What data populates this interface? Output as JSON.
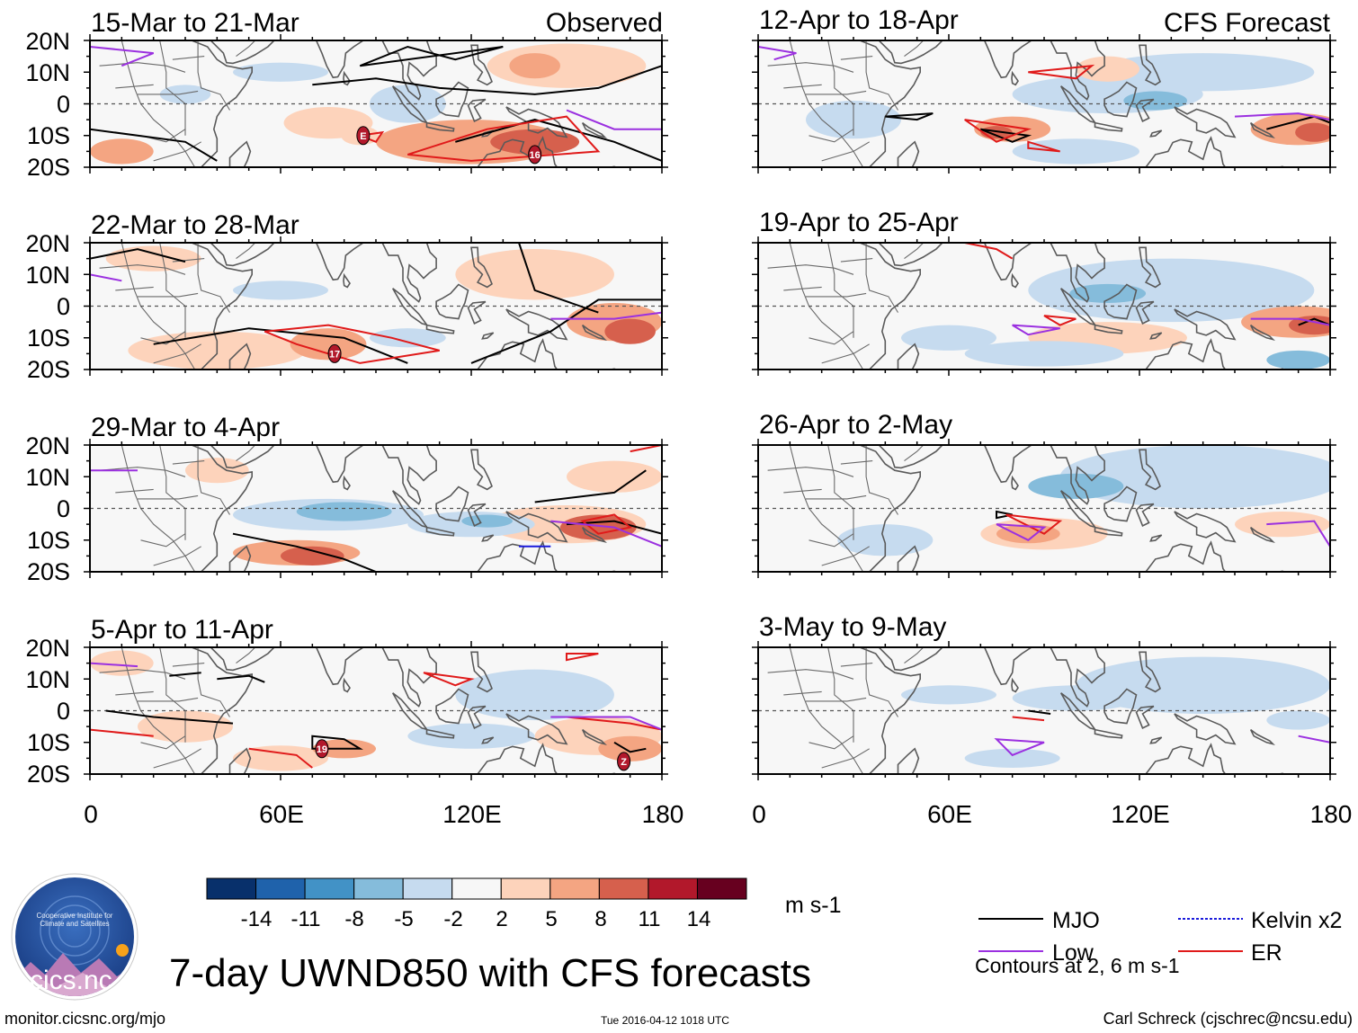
{
  "figure_title": "7-day UWND850 with CFS forecasts",
  "source_url": "monitor.cicsnc.org/mjo",
  "timestamp": "Tue 2016-04-12 1018 UTC",
  "author": "Carl Schreck (cjschrec@ncsu.edu)",
  "logo_text": "cics.nc",
  "logo_ring_text": "Cooperative Institute for Climate and Satellites",
  "columns": {
    "observed": "Observed",
    "forecast": "CFS Forecast"
  },
  "lat_labels": [
    "20N",
    "10N",
    "0",
    "10S",
    "20S"
  ],
  "lon_labels": [
    "0",
    "60E",
    "120E",
    "180"
  ],
  "observed_panels": [
    {
      "title": "15-Mar to 21-Mar",
      "storms": [
        "E",
        "16"
      ]
    },
    {
      "title": "22-Mar to 28-Mar",
      "storms": [
        "17"
      ]
    },
    {
      "title": "29-Mar to 4-Apr",
      "storms": []
    },
    {
      "title": "5-Apr to 11-Apr",
      "storms": [
        "19",
        "Z"
      ]
    }
  ],
  "forecast_panels": [
    {
      "title": "12-Apr to 18-Apr"
    },
    {
      "title": "19-Apr to 25-Apr"
    },
    {
      "title": "26-Apr to 2-May"
    },
    {
      "title": "3-May to 9-May"
    }
  ],
  "colorbar": {
    "units": "m s-1",
    "ticks": [
      "-14",
      "-11",
      "-8",
      "-5",
      "-2",
      "2",
      "5",
      "8",
      "11",
      "14"
    ],
    "colors": [
      "#08306b",
      "#1f62ab",
      "#4292c6",
      "#85bcdb",
      "#c6dbef",
      "#f7f7f7",
      "#fdd3bb",
      "#f4a582",
      "#d6604d",
      "#b2182b",
      "#67001f"
    ]
  },
  "legend": {
    "items": [
      {
        "label": "MJO",
        "color": "#000000"
      },
      {
        "label": "Kelvin x2",
        "color": "#1a1adb"
      },
      {
        "label": "Low",
        "color": "#9b30e0"
      },
      {
        "label": "ER",
        "color": "#e01a1a"
      }
    ],
    "note": "Contours at 2, 6 m s-1"
  },
  "chart_data": {
    "type": "heatmap",
    "title": "7-day UWND850 with CFS forecasts",
    "variable": "850-hPa zonal wind anomaly",
    "units": "m s-1",
    "lon_range": [
      0,
      180
    ],
    "lat_range": [
      -20,
      20
    ],
    "contour_levels": [
      2,
      6
    ],
    "color_levels": [
      -14,
      -11,
      -8,
      -5,
      -2,
      2,
      5,
      8,
      11,
      14
    ]
  }
}
